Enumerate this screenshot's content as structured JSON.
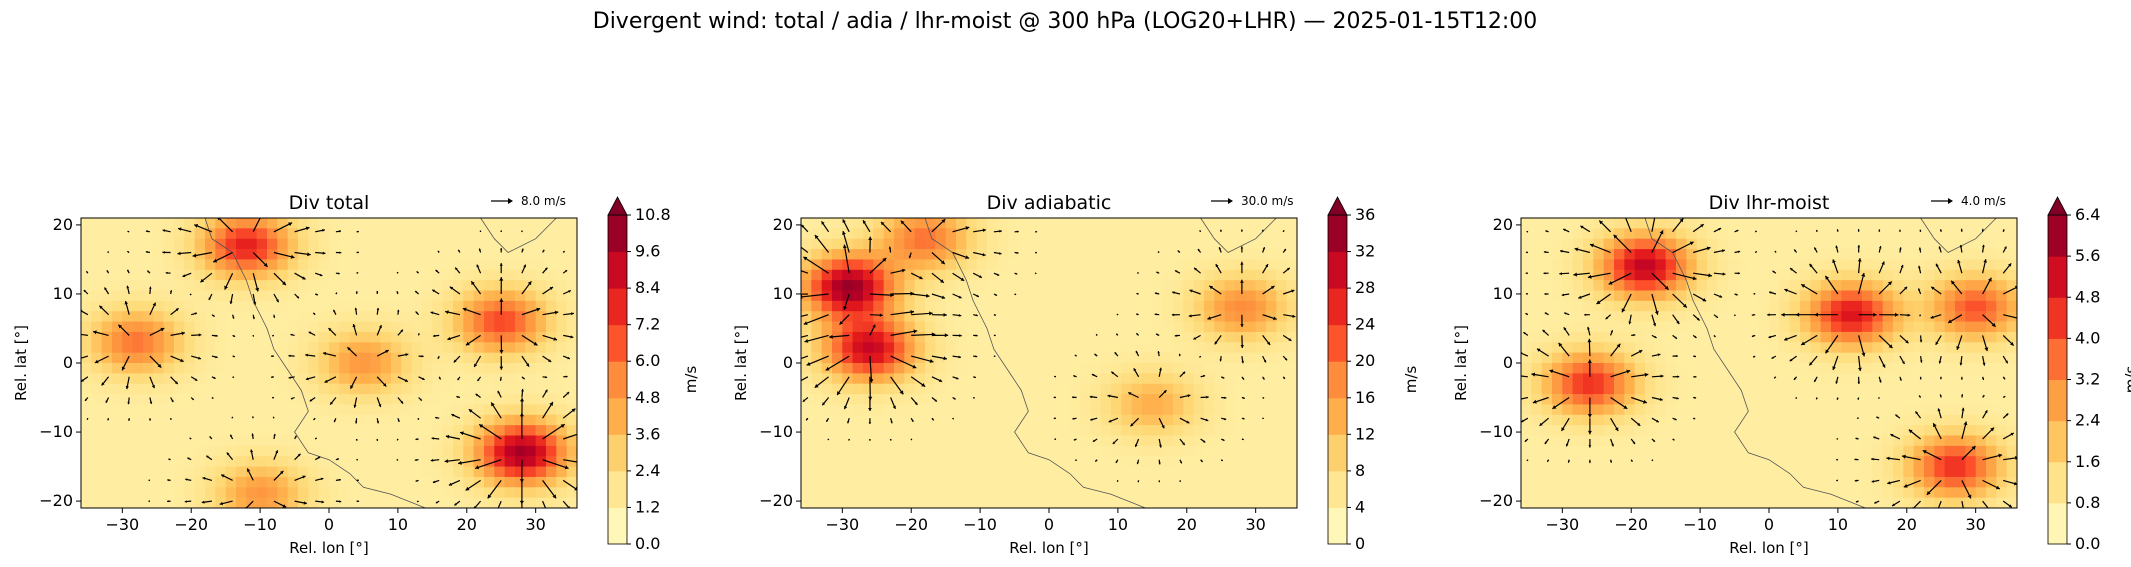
{
  "figure": {
    "title": "Divergent wind: total / adia / lhr-moist @ 300 hPa (LOG20+LHR) — 2025-01-15T12:00"
  },
  "chart_data": [
    {
      "type": "heatmap",
      "title": "Div total",
      "xlabel": "Rel. lon [°]",
      "ylabel": "Rel. lat [°]",
      "xlim": [
        -36,
        36
      ],
      "ylim": [
        -21,
        21
      ],
      "xticks": [
        "−30",
        "−20",
        "−10",
        "0",
        "10",
        "20",
        "30"
      ],
      "yticks": [
        "20",
        "10",
        "0",
        "−10",
        "−20"
      ],
      "quiverkey": "8.0 m/s",
      "colorbar": {
        "label": "m/s",
        "ticks": [
          "0.0",
          "1.2",
          "2.4",
          "3.6",
          "4.8",
          "6.0",
          "7.2",
          "8.4",
          "9.6",
          "10.8"
        ],
        "vmin": 0,
        "vmax": 10.8,
        "extend": "max"
      },
      "max_regions": [
        {
          "lon": -12,
          "lat": 17,
          "speed": 8
        },
        {
          "lon": 28,
          "lat": -13,
          "speed": 10
        },
        {
          "lon": 25,
          "lat": 6,
          "speed": 7
        },
        {
          "lon": -28,
          "lat": 3,
          "speed": 6
        },
        {
          "lon": 5,
          "lat": 0,
          "speed": 5
        },
        {
          "lon": -10,
          "lat": -19,
          "speed": 5
        }
      ]
    },
    {
      "type": "heatmap",
      "title": "Div adiabatic",
      "xlabel": "Rel. lon [°]",
      "ylabel": "Rel. lat [°]",
      "xlim": [
        -36,
        36
      ],
      "ylim": [
        -21,
        21
      ],
      "xticks": [
        "−30",
        "−20",
        "−10",
        "0",
        "10",
        "20",
        "30"
      ],
      "yticks": [
        "20",
        "10",
        "0",
        "−10",
        "−20"
      ],
      "quiverkey": "30.0 m/s",
      "colorbar": {
        "label": "m/s",
        "ticks": [
          "0",
          "4",
          "8",
          "12",
          "16",
          "20",
          "24",
          "28",
          "32",
          "36"
        ],
        "vmin": 0,
        "vmax": 36,
        "extend": "max"
      },
      "max_regions": [
        {
          "lon": -29,
          "lat": 11,
          "speed": 34
        },
        {
          "lon": -26,
          "lat": 2,
          "speed": 30
        },
        {
          "lon": -18,
          "lat": 18,
          "speed": 20
        },
        {
          "lon": 28,
          "lat": 8,
          "speed": 18
        },
        {
          "lon": 15,
          "lat": -6,
          "speed": 14
        }
      ]
    },
    {
      "type": "heatmap",
      "title": "Div lhr-moist",
      "xlabel": "Rel. lon [°]",
      "ylabel": "Rel. lat [°]",
      "xlim": [
        -36,
        36
      ],
      "ylim": [
        -21,
        21
      ],
      "xticks": [
        "−30",
        "−20",
        "−10",
        "0",
        "10",
        "20",
        "30"
      ],
      "yticks": [
        "20",
        "10",
        "0",
        "−10",
        "−20"
      ],
      "quiverkey": "4.0 m/s",
      "colorbar": {
        "label": "m/s",
        "ticks": [
          "0.0",
          "0.8",
          "1.6",
          "2.4",
          "3.2",
          "4.0",
          "4.8",
          "5.6",
          "6.4"
        ],
        "vmin": 0,
        "vmax": 6.4,
        "extend": "max"
      },
      "max_regions": [
        {
          "lon": -18,
          "lat": 14,
          "speed": 5.5
        },
        {
          "lon": -26,
          "lat": -3,
          "speed": 4.5
        },
        {
          "lon": 12,
          "lat": 7,
          "speed": 5
        },
        {
          "lon": 30,
          "lat": 8,
          "speed": 4
        },
        {
          "lon": 27,
          "lat": -15,
          "speed": 4.5
        }
      ]
    }
  ]
}
